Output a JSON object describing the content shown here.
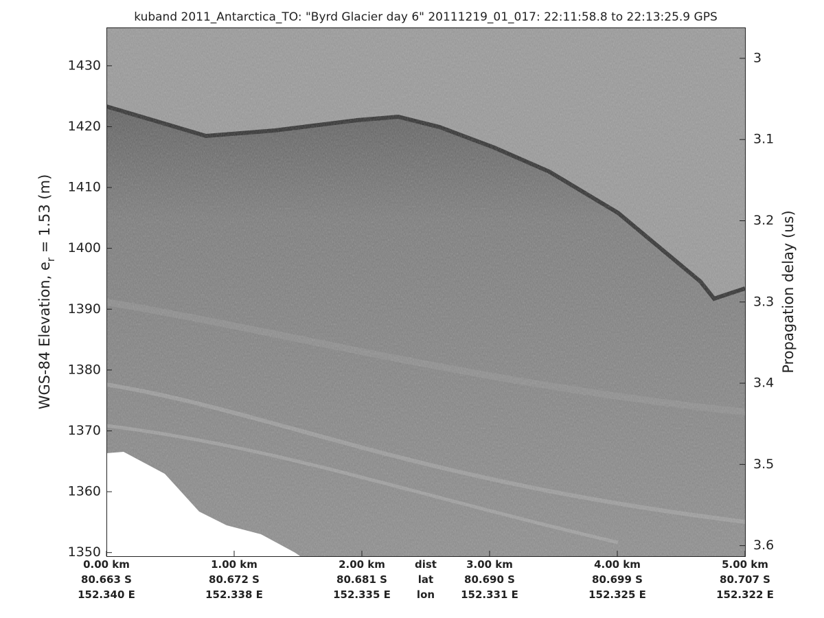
{
  "chart_data": {
    "type": "echogram",
    "title": "kuband 2011_Antarctica_TO: \"Byrd Glacier day 6\"  20111219_01_017: 22:11:58.8 to 22:13:25.9 GPS",
    "ylabel": {
      "main": "WGS-84 Elevation, e",
      "subscript": "r",
      "rest": " = 1.53 (m)"
    },
    "y2label": "Propagation delay (us)",
    "xlim": [
      0,
      5
    ],
    "ylim": [
      1349.4,
      1436.3
    ],
    "yticks": [
      1350,
      1360,
      1370,
      1380,
      1390,
      1400,
      1410,
      1420,
      1430
    ],
    "y2lim": [
      3.613,
      2.962
    ],
    "y2ticks": [
      {
        "value": 3,
        "label": "3"
      },
      3.1,
      3.2,
      3.3,
      3.4,
      3.5,
      3.6
    ],
    "xticks": [
      {
        "value": 0,
        "label": "0.00 km"
      },
      {
        "value": 1,
        "label": "1.00 km"
      },
      {
        "value": 2,
        "label": "2.00 km"
      },
      {
        "value": 3,
        "label": "3.00 km"
      },
      {
        "value": 4,
        "label": "4.00 km"
      },
      {
        "value": 5,
        "label": "5.00 km"
      }
    ],
    "xtick_lat": [
      "80.663 S",
      "80.672 S",
      "80.681 S",
      "80.690 S",
      "80.699 S",
      "80.707 S"
    ],
    "xtick_lon": [
      "152.340 E",
      "152.338 E",
      "152.335 E",
      "152.331 E",
      "152.325 E",
      "152.322 E"
    ],
    "x_row_labels": {
      "value": 2.5,
      "labels": [
        "dist",
        "lat",
        "lon"
      ]
    }
  }
}
